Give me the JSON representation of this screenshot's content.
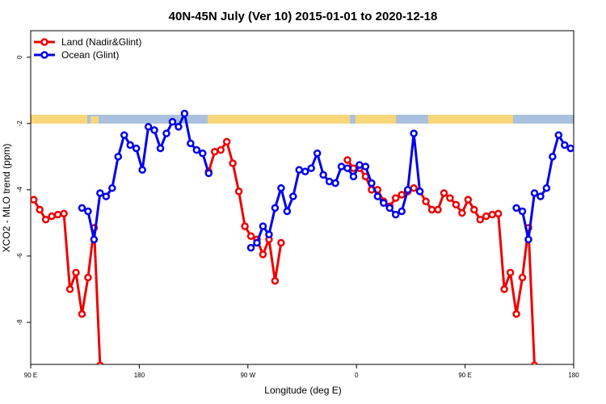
{
  "chart_data": {
    "type": "line",
    "title": "40N-45N July (Ver 10)   2015-01-01 to 2020-12-18",
    "x_label": "Longitude (deg E)",
    "y_label": "XCO2 - MLO trend (ppm)",
    "xlim": [
      90,
      540
    ],
    "ylim": [
      -9.27,
      0.8
    ],
    "xticks": [
      {
        "value": 90,
        "label": "90 E"
      },
      180,
      {
        "value": 270,
        "label": "90 W"
      },
      {
        "value": 360,
        "label": "0"
      },
      {
        "value": 450,
        "label": "90 E"
      },
      {
        "value": 540,
        "label": "180"
      }
    ],
    "yticks": [
      0,
      -2,
      -4,
      -6,
      -8
    ],
    "legend": "top-left",
    "series": [
      {
        "name": "Land (Nadir&Glint)",
        "color": "#ee0000",
        "x": [
          92.5,
          97.5,
          102.5,
          107.5,
          112.5,
          117.5,
          122.5,
          127.5,
          132.5,
          137.5,
          142.5,
          147.5,
          152.5,
          237.5,
          242.5,
          247.5,
          252.5,
          257.5,
          262.5,
          267.5,
          272.5,
          277.5,
          282.5,
          287.5,
          292.5,
          297.5,
          302.5,
          352.5,
          357.5,
          362.5,
          367.5,
          372.5,
          377.5,
          382.5,
          387.5,
          392.5,
          397.5,
          402.5,
          407.5,
          412.5,
          417.5,
          422.5,
          427.5,
          432.5,
          437.5,
          442.5,
          447.5,
          452.5,
          457.5,
          462.5,
          467.5,
          472.5,
          477.5,
          482.5,
          487.5,
          492.5,
          497.5,
          502.5,
          507.5
        ],
        "values": [
          -4.3,
          -4.6,
          -4.9,
          -4.8,
          -4.75,
          -4.72,
          -7.0,
          -6.5,
          -7.75,
          -6.65,
          -5.15,
          -9.3,
          null,
          -3.45,
          -2.85,
          -2.8,
          -2.55,
          -3.2,
          -4.05,
          -5.1,
          -5.4,
          -5.5,
          -5.95,
          -5.5,
          -6.75,
          -5.6,
          null,
          -3.1,
          -3.35,
          -3.35,
          -3.6,
          -4.0,
          -4.0,
          -4.35,
          -4.5,
          -4.25,
          -4.15,
          -4.05,
          -3.95,
          -4.05,
          -4.35,
          -4.6,
          -4.6,
          -4.1,
          -4.25,
          -4.45,
          -4.7,
          -4.3,
          -4.6,
          -4.9,
          -4.8,
          -4.75,
          -4.72,
          -7.0,
          -6.5,
          -7.75,
          -6.65,
          -5.15,
          -9.3
        ]
      },
      {
        "name": "Ocean (Glint)",
        "color": "#0000ee",
        "x": [
          132.5,
          137.5,
          142.5,
          147.5,
          152.5,
          157.5,
          162.5,
          167.5,
          172.5,
          177.5,
          182.5,
          187.5,
          192.5,
          197.5,
          202.5,
          207.5,
          212.5,
          217.5,
          222.5,
          227.5,
          232.5,
          237.5,
          242.5,
          272.5,
          277.5,
          282.5,
          287.5,
          292.5,
          297.5,
          302.5,
          307.5,
          312.5,
          317.5,
          322.5,
          327.5,
          332.5,
          337.5,
          342.5,
          347.5,
          352.5,
          357.5,
          362.5,
          367.5,
          372.5,
          377.5,
          382.5,
          387.5,
          392.5,
          397.5,
          402.5,
          407.5,
          412.5,
          417.5,
          492.5,
          497.5,
          502.5,
          507.5,
          512.5,
          517.5,
          522.5,
          527.5,
          532.5,
          537.5
        ],
        "values": [
          -4.55,
          -4.65,
          -5.5,
          -4.1,
          -4.2,
          -3.95,
          -3.0,
          -2.35,
          -2.65,
          -2.75,
          -3.4,
          -2.1,
          -2.2,
          -2.75,
          -2.3,
          -1.95,
          -2.1,
          -1.7,
          -2.6,
          -2.8,
          -2.9,
          -3.5,
          null,
          -5.75,
          -5.6,
          -5.1,
          -5.35,
          -4.55,
          -3.95,
          -4.65,
          -4.2,
          -3.4,
          -3.45,
          -3.35,
          -2.9,
          -3.55,
          -3.75,
          -3.8,
          -3.3,
          -3.35,
          -3.6,
          -3.25,
          -3.3,
          -3.8,
          -4.2,
          -4.4,
          -4.55,
          -4.75,
          -4.65,
          -4.0,
          -2.3,
          -4.05,
          null,
          -4.55,
          -4.65,
          -5.5,
          -4.1,
          -4.2,
          -3.95,
          -3.0,
          -2.35,
          -2.65,
          -2.75
        ]
      }
    ]
  }
}
